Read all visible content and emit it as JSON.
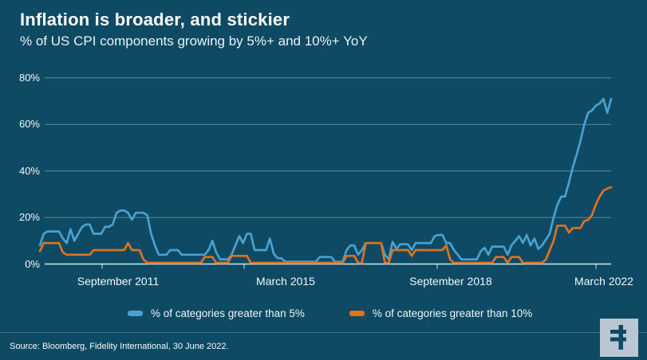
{
  "header": {
    "title": "Inflation is broader, and stickier",
    "subtitle": "% of US CPI components growing by 5%+ and 10%+ YoY"
  },
  "colors": {
    "background": "#0e4a64",
    "line_5pct": "#4aa0cf",
    "line_10pct": "#e2711d",
    "grid": "rgba(255,255,255,0.35)",
    "axis": "rgba(255,255,255,0.85)",
    "logo_bg": "#b8c7d1",
    "logo_fg": "#0e4a64"
  },
  "chart_data": {
    "type": "line",
    "title": "Inflation is broader, and stickier",
    "subtitle": "% of US CPI components growing by 5%+ and 10%+ YoY",
    "x_start": "2010-01",
    "x_end": "2022-06",
    "frequency": "monthly",
    "xlabel": "",
    "ylabel": "",
    "ylim": [
      0,
      80
    ],
    "grid": "horizontal",
    "legend_position": "bottom",
    "yticks": [
      {
        "value": 80,
        "label": "80%"
      },
      {
        "value": 60,
        "label": "60%"
      },
      {
        "value": 40,
        "label": "40%"
      },
      {
        "value": 20,
        "label": "20%"
      },
      {
        "value": 0,
        "label": "0%"
      }
    ],
    "xtick_labels": [
      "September 2011",
      "March 2015",
      "September 2018",
      "March 2022"
    ],
    "series": [
      {
        "name": "% of categories greater than 5%",
        "color": "#4aa0cf",
        "values": [
          8,
          13,
          14,
          14,
          14,
          14,
          11,
          9,
          15,
          10,
          13,
          16,
          17,
          17,
          13,
          13,
          13,
          16,
          16,
          17,
          22,
          23,
          23,
          22,
          19,
          22,
          22,
          22,
          21,
          13,
          8,
          4,
          4,
          4,
          6,
          6,
          6,
          4,
          4,
          4,
          4,
          4,
          4,
          4,
          6,
          10,
          5,
          2,
          2,
          2,
          4,
          8,
          12,
          9,
          13,
          13,
          6,
          6,
          6,
          6,
          11,
          4.5,
          2.5,
          2.5,
          1,
          1,
          1,
          1,
          1,
          1,
          1,
          1,
          1,
          3,
          3,
          3,
          3,
          1,
          1,
          1,
          6,
          8,
          8,
          4,
          6,
          9,
          9,
          9,
          9,
          9,
          4,
          2,
          9.5,
          6.5,
          8.5,
          8.5,
          8.5,
          6,
          9,
          9,
          9,
          9,
          9,
          12,
          12.5,
          12.5,
          9,
          9,
          6,
          4,
          2,
          2,
          2,
          2,
          2,
          5.5,
          7,
          4,
          7.5,
          7.5,
          7.5,
          7.5,
          4,
          8,
          10,
          12,
          9,
          12.5,
          8,
          11,
          6.5,
          8,
          10.5,
          13,
          20,
          25.5,
          29,
          29,
          35,
          41.5,
          47,
          53,
          60,
          65,
          66,
          68,
          69,
          71,
          65,
          71
        ]
      },
      {
        "name": "% of categories greater than 10%",
        "color": "#e2711d",
        "values": [
          5.5,
          9,
          9,
          9,
          9,
          9,
          5,
          4,
          4,
          4,
          4,
          4,
          4,
          4,
          6,
          6,
          6,
          6,
          6,
          6,
          6,
          6,
          6,
          9,
          6,
          6,
          6,
          2,
          0.5,
          0.5,
          0.5,
          0.5,
          0.5,
          0.5,
          0.5,
          0.5,
          0.5,
          0.5,
          0.5,
          0.5,
          0.5,
          0.5,
          0.5,
          3,
          3,
          3,
          0.5,
          0.5,
          0.5,
          0.5,
          3.5,
          3.5,
          3.5,
          3.5,
          3.5,
          0.5,
          0.5,
          0.5,
          0.5,
          0.5,
          0.5,
          0.5,
          0.5,
          0.5,
          0.5,
          0.5,
          0.5,
          0.5,
          0.5,
          0.5,
          0.5,
          0.5,
          0.5,
          0.5,
          0.5,
          0.5,
          0.5,
          0.5,
          0.5,
          0.5,
          3.5,
          3.5,
          3.5,
          0.5,
          0.5,
          9,
          9,
          9,
          9,
          9,
          0.5,
          0.5,
          6,
          6,
          6,
          6,
          6,
          3.5,
          6,
          6,
          6,
          6,
          6,
          6,
          6,
          6,
          8,
          2,
          0.5,
          0.5,
          0.5,
          0.5,
          0.5,
          0.5,
          0.5,
          0.5,
          0.5,
          0.5,
          0.5,
          3,
          3,
          3,
          0.5,
          3,
          3,
          3,
          0.5,
          0.5,
          0.5,
          0.5,
          0.5,
          0.5,
          2,
          6,
          10,
          16.5,
          16.5,
          16.5,
          13.5,
          15.5,
          15.5,
          15.5,
          18.5,
          19,
          21,
          25.5,
          29,
          31.5,
          32.5,
          33
        ]
      }
    ]
  },
  "legend": {
    "items": [
      {
        "label": "% of categories greater than 5%",
        "color": "#4aa0cf"
      },
      {
        "label": "% of categories greater than 10%",
        "color": "#e2711d"
      }
    ]
  },
  "footer": {
    "source": "Source: Bloomberg, Fidelity International, 30 June 2022."
  },
  "logo": {
    "letter": "F"
  }
}
